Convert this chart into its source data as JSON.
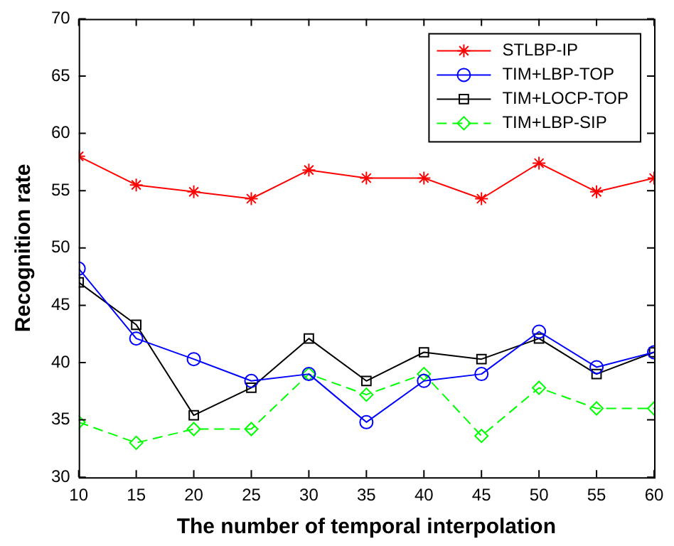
{
  "chart_data": {
    "type": "line",
    "xlabel": "The number of temporal interpolation",
    "ylabel": "Recognition rate",
    "x": [
      10,
      15,
      20,
      25,
      30,
      35,
      40,
      45,
      50,
      55,
      60
    ],
    "xlim": [
      10,
      60
    ],
    "xticks": [
      10,
      15,
      20,
      25,
      30,
      35,
      40,
      45,
      50,
      55,
      60
    ],
    "ylim": [
      30,
      70
    ],
    "yticks": [
      30,
      35,
      40,
      45,
      50,
      55,
      60,
      65,
      70
    ],
    "grid": false,
    "legend": "top right",
    "series": [
      {
        "name": "STLBP-IP",
        "color": "#ff0000",
        "marker": "cross",
        "line_style": "solid",
        "values": [
          58,
          55.5,
          54.9,
          54.3,
          56.8,
          56.1,
          56.1,
          54.3,
          57.4,
          54.9,
          56.1
        ]
      },
      {
        "name": "TIM+LBP-TOP",
        "color": "#0000ff",
        "marker": "circle",
        "line_style": "solid",
        "values": [
          48.2,
          42.1,
          40.3,
          38.4,
          39.0,
          34.8,
          38.4,
          39.0,
          42.7,
          39.6,
          40.9
        ]
      },
      {
        "name": "TIM+LOCP-TOP",
        "color": "#000000",
        "marker": "square",
        "line_style": "solid",
        "values": [
          47.0,
          43.3,
          35.4,
          37.8,
          42.1,
          38.4,
          40.9,
          40.3,
          42.1,
          39.0,
          40.9
        ]
      },
      {
        "name": "TIM+LBP-SIP",
        "color": "#00ff00",
        "marker": "diamond",
        "line_style": "dashed",
        "values": [
          34.8,
          33.0,
          34.2,
          34.2,
          39.0,
          37.2,
          39.0,
          33.6,
          37.8,
          36.0,
          36.0
        ]
      }
    ]
  }
}
